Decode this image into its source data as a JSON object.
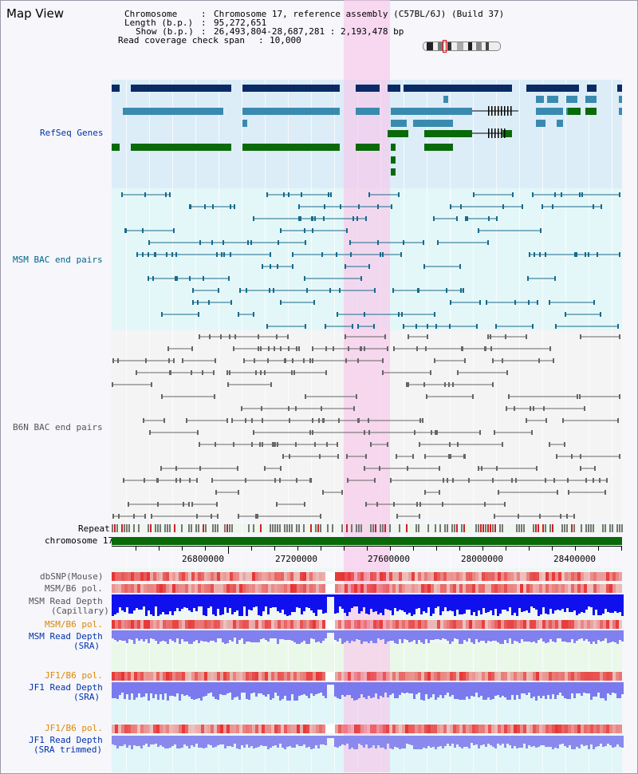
{
  "app": {
    "title": "Map View"
  },
  "header": {
    "chromosome_label": "Chromosome",
    "chromosome_value": "Chromosome 17, reference assembly (C57BL/6J) (Build 37)",
    "length_label": "Length (b.p.)",
    "length_value": "95,272,651",
    "show_label": "Show (b.p.)",
    "show_value": "26,493,804-28,687,281 : 2,193,478 bp",
    "coverage_label": "Read coverage check span",
    "coverage_value": "10,000"
  },
  "tracks": {
    "refseq": "RefSeq Genes",
    "msm_bac": "MSM BAC end pairs",
    "b6n_bac": "B6N BAC end pairs",
    "repeat": "Repeat",
    "chromosome": "chromosome 17",
    "dbsnp": "dbSNP(Mouse)",
    "msm_b6_pol1": "MSM/B6 pol.",
    "msm_depth_cap_1": "MSM Read Depth",
    "msm_depth_cap_2": "(Capillary)",
    "msm_b6_pol2": "MSM/B6 pol.",
    "msm_depth_sra_1": "MSM Read Depth",
    "msm_depth_sra_2": "(SRA)",
    "jf1_pol1": "JF1/B6 pol.",
    "jf1_depth_1": "JF1 Read Depth",
    "jf1_depth_2": "(SRA)",
    "jf1_pol2": "JF1/B6 pol.",
    "jf1_trim_1": "JF1 Read Depth",
    "jf1_trim_2": "(SRA trimmed)"
  },
  "axis": {
    "ticks": [
      "26800000",
      "27200000",
      "27600000",
      "28000000",
      "28400000"
    ]
  },
  "colors": {
    "refseq_dark": "#0a2a66",
    "refseq_mid": "#3a8ab0",
    "refseq_green": "#0a6a0a",
    "msm_bac": "#1a6a8a",
    "b6n_bac": "#666666",
    "highlight": "#f7c8ea",
    "chrom_bar": "#0a6a0a"
  }
}
